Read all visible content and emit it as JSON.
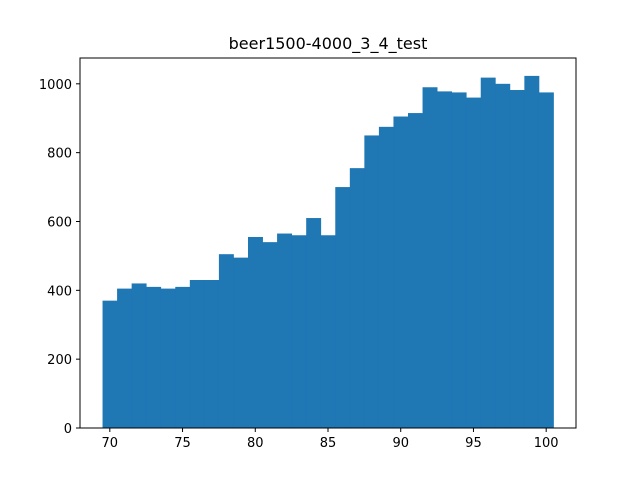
{
  "chart_data": {
    "type": "bar",
    "title": "beer1500-4000_3_4_test",
    "xlabel": "",
    "ylabel": "",
    "bin_edges": [
      69.5,
      70.5,
      71.5,
      72.5,
      73.5,
      74.5,
      75.5,
      76.5,
      77.5,
      78.5,
      79.5,
      80.5,
      81.5,
      82.5,
      83.5,
      84.5,
      85.5,
      86.5,
      87.5,
      88.5,
      89.5,
      90.5,
      91.5,
      92.5,
      93.5,
      94.5,
      95.5,
      96.5,
      97.5,
      98.5,
      99.5,
      100.5
    ],
    "values": [
      370,
      405,
      420,
      410,
      405,
      410,
      430,
      430,
      505,
      495,
      555,
      540,
      565,
      560,
      610,
      560,
      700,
      755,
      850,
      875,
      905,
      915,
      990,
      978,
      975,
      960,
      1018,
      1000,
      982,
      1023,
      975
    ],
    "xlim": [
      67.95,
      102.05
    ],
    "ylim": [
      0,
      1075
    ],
    "xticks": [
      70,
      75,
      80,
      85,
      90,
      95,
      100
    ],
    "yticks": [
      0,
      200,
      400,
      600,
      800,
      1000
    ],
    "bar_color": "#1f77b4",
    "grid": false,
    "legend": "none"
  }
}
